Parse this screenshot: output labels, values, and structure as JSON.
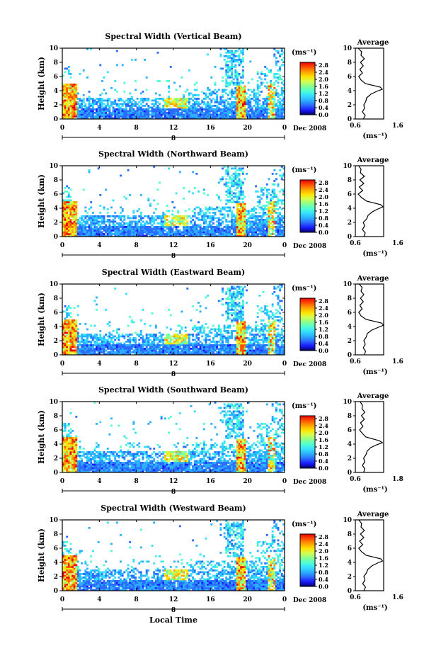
{
  "common": {
    "y_axis_label": "Height (km)",
    "y_ticks": [
      "0",
      "2",
      "4",
      "6",
      "8",
      "10"
    ],
    "x_ticks": [
      "0",
      "4",
      "8",
      "12",
      "16",
      "20",
      "0"
    ],
    "date_label": "Dec 2008",
    "day_label": "8",
    "colorbar_unit": "(ms⁻¹)",
    "colorbar_ticks": [
      "0.0",
      "0.4",
      "0.8",
      "1.2",
      "1.6",
      "2.0",
      "2.4",
      "2.8"
    ],
    "average_title": "Average",
    "average_unit": "(ms⁻¹)",
    "x_axis_label": "Local Time",
    "colormap": [
      "#000060",
      "#1a1aff",
      "#2a6cff",
      "#2ab0ff",
      "#34e0ff",
      "#50ffd2",
      "#8cff8c",
      "#d4ff50",
      "#ffe000",
      "#ffa000",
      "#ff5000",
      "#e80000"
    ]
  },
  "chart_data": [
    {
      "type": "heatmap",
      "title": "Spectral Width (Vertical Beam)",
      "ylabel": "Height (km)",
      "xlabel": "Local Time",
      "xlim": [
        0,
        24
      ],
      "ylim": [
        0,
        10
      ],
      "colorbar_range": [
        0.0,
        2.8
      ],
      "avg_ticks": [
        "0.6",
        "1.6"
      ],
      "avg_xlim": [
        0.6,
        1.6
      ],
      "avg_height": [
        0,
        0.5,
        1,
        1.5,
        2,
        2.5,
        3,
        3.5,
        3.9,
        4.2,
        4.5,
        5,
        5.5,
        6,
        6.5,
        7,
        7.5,
        8,
        8.5,
        9,
        9.5,
        10
      ],
      "avg_value": [
        0.88,
        0.95,
        0.85,
        0.92,
        0.9,
        0.97,
        1.0,
        1.15,
        1.35,
        1.55,
        1.48,
        0.95,
        0.8,
        0.72,
        0.85,
        0.76,
        0.88,
        0.78,
        0.92,
        0.8,
        0.82,
        0.7
      ]
    },
    {
      "type": "heatmap",
      "title": "Spectral Width (Northward Beam)",
      "ylabel": "Height (km)",
      "xlabel": "Local Time",
      "xlim": [
        0,
        24
      ],
      "ylim": [
        0,
        10
      ],
      "colorbar_range": [
        0.0,
        2.8
      ],
      "avg_ticks": [
        "0.6",
        "1.6"
      ],
      "avg_xlim": [
        0.6,
        1.6
      ],
      "avg_height": [
        0,
        0.5,
        1,
        1.5,
        2,
        2.5,
        3,
        3.5,
        3.9,
        4.2,
        4.5,
        5,
        5.5,
        6,
        6.5,
        7,
        7.5,
        8,
        8.5,
        9,
        9.5,
        10
      ],
      "avg_value": [
        0.9,
        0.95,
        0.85,
        0.93,
        0.88,
        1.0,
        1.05,
        1.2,
        1.4,
        1.58,
        1.5,
        1.0,
        0.82,
        0.7,
        0.86,
        0.74,
        0.9,
        0.76,
        0.92,
        0.78,
        0.8,
        0.72
      ]
    },
    {
      "type": "heatmap",
      "title": "Spectral Width (Eastward Beam)",
      "ylabel": "Height (km)",
      "xlabel": "Local Time",
      "xlim": [
        0,
        24
      ],
      "ylim": [
        0,
        10
      ],
      "colorbar_range": [
        0.0,
        2.8
      ],
      "avg_ticks": [
        "0.6",
        "1.6"
      ],
      "avg_xlim": [
        0.6,
        1.6
      ],
      "avg_height": [
        0,
        0.5,
        1,
        1.5,
        2,
        2.5,
        3,
        3.5,
        3.9,
        4.2,
        4.5,
        5,
        5.5,
        6,
        6.5,
        7,
        7.5,
        8,
        8.5,
        9,
        9.5,
        10
      ],
      "avg_value": [
        0.92,
        0.96,
        0.88,
        0.95,
        0.9,
        0.98,
        1.02,
        1.18,
        1.42,
        1.6,
        1.52,
        0.98,
        0.8,
        0.72,
        0.84,
        0.76,
        0.88,
        0.78,
        0.9,
        0.8,
        0.84,
        0.74
      ]
    },
    {
      "type": "heatmap",
      "title": "Spectral Width (Southward Beam)",
      "ylabel": "Height (km)",
      "xlabel": "Local Time",
      "xlim": [
        0,
        24
      ],
      "ylim": [
        0,
        10
      ],
      "colorbar_range": [
        0.0,
        2.8
      ],
      "avg_ticks": [
        "0.6",
        "1.8"
      ],
      "avg_xlim": [
        0.6,
        1.8
      ],
      "avg_height": [
        0,
        0.5,
        1,
        1.5,
        2,
        2.5,
        3,
        3.5,
        3.9,
        4.2,
        4.5,
        5,
        5.5,
        6,
        6.5,
        7,
        7.5,
        8,
        8.5,
        9,
        9.5,
        10
      ],
      "avg_value": [
        0.95,
        1.0,
        0.9,
        1.0,
        0.95,
        1.05,
        1.1,
        1.25,
        1.5,
        1.75,
        1.6,
        1.05,
        0.9,
        0.78,
        0.92,
        0.82,
        0.98,
        0.86,
        1.0,
        0.88,
        0.9,
        0.8
      ]
    },
    {
      "type": "heatmap",
      "title": "Spectral Width (Westward Beam)",
      "ylabel": "Height (km)",
      "xlabel": "Local Time",
      "xlim": [
        0,
        24
      ],
      "ylim": [
        0,
        10
      ],
      "colorbar_range": [
        0.0,
        2.8
      ],
      "avg_ticks": [
        "0.6",
        "1.6"
      ],
      "avg_xlim": [
        0.6,
        1.6
      ],
      "avg_height": [
        0,
        0.5,
        1,
        1.5,
        2,
        2.5,
        3,
        3.5,
        3.9,
        4.2,
        4.5,
        5,
        5.5,
        6,
        6.5,
        7,
        7.5,
        8,
        8.5,
        9,
        9.5,
        10
      ],
      "avg_value": [
        0.9,
        0.96,
        0.86,
        0.94,
        0.9,
        0.99,
        1.04,
        1.18,
        1.38,
        1.56,
        1.5,
        0.98,
        0.82,
        0.72,
        0.86,
        0.75,
        0.9,
        0.78,
        0.92,
        0.8,
        0.82,
        0.72
      ]
    }
  ]
}
